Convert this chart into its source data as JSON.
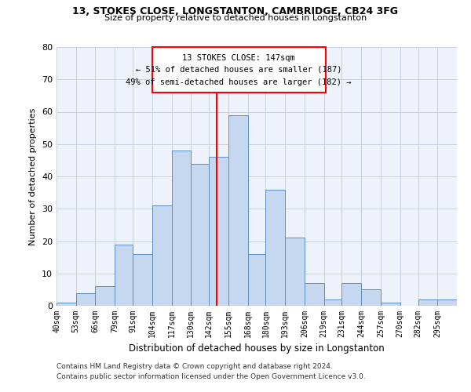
{
  "title1": "13, STOKES CLOSE, LONGSTANTON, CAMBRIDGE, CB24 3FG",
  "title2": "Size of property relative to detached houses in Longstanton",
  "xlabel": "Distribution of detached houses by size in Longstanton",
  "ylabel": "Number of detached properties",
  "bin_labels": [
    "40sqm",
    "53sqm",
    "66sqm",
    "79sqm",
    "91sqm",
    "104sqm",
    "117sqm",
    "130sqm",
    "142sqm",
    "155sqm",
    "168sqm",
    "180sqm",
    "193sqm",
    "206sqm",
    "219sqm",
    "231sqm",
    "244sqm",
    "257sqm",
    "270sqm",
    "282sqm",
    "295sqm"
  ],
  "bin_edges": [
    40,
    53,
    66,
    79,
    91,
    104,
    117,
    130,
    142,
    155,
    168,
    180,
    193,
    206,
    219,
    231,
    244,
    257,
    270,
    282,
    295
  ],
  "bar_heights": [
    1,
    4,
    6,
    19,
    16,
    31,
    48,
    44,
    46,
    59,
    16,
    36,
    21,
    7,
    2,
    7,
    5,
    1,
    0,
    2,
    2
  ],
  "bar_color": "#c5d8f0",
  "bar_edge_color": "#5b8ec4",
  "grid_color": "#c8d0e0",
  "bg_color": "#eef2fb",
  "ref_line_x": 147,
  "ref_line_color": "red",
  "annotation_line1": "13 STOKES CLOSE: 147sqm",
  "annotation_line2": "← 51% of detached houses are smaller (187)",
  "annotation_line3": "49% of semi-detached houses are larger (182) →",
  "ylim": [
    0,
    80
  ],
  "yticks": [
    0,
    10,
    20,
    30,
    40,
    50,
    60,
    70,
    80
  ],
  "footer1": "Contains HM Land Registry data © Crown copyright and database right 2024.",
  "footer2": "Contains public sector information licensed under the Open Government Licence v3.0."
}
